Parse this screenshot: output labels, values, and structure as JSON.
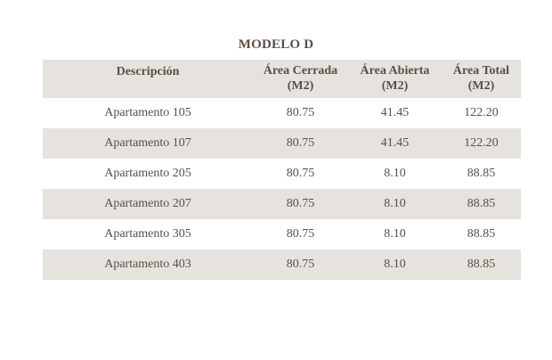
{
  "title": "MODELO D",
  "table": {
    "headers": [
      {
        "line1": "Descripción",
        "line2": ""
      },
      {
        "line1": "Área Cerrada",
        "line2": "(M2)"
      },
      {
        "line1": "Área Abierta",
        "line2": "(M2)"
      },
      {
        "line1": "Área Total",
        "line2": "(M2)"
      }
    ],
    "rows": [
      [
        "Apartamento 105",
        "80.75",
        "41.45",
        "122.20"
      ],
      [
        "Apartamento 107",
        "80.75",
        "41.45",
        "122.20"
      ],
      [
        "Apartamento 205",
        "80.75",
        "8.10",
        "88.85"
      ],
      [
        "Apartamento 207",
        "80.75",
        "8.10",
        "88.85"
      ],
      [
        "Apartamento 305",
        "80.75",
        "8.10",
        "88.85"
      ],
      [
        "Apartamento 403",
        "80.75",
        "8.10",
        "88.85"
      ]
    ]
  }
}
